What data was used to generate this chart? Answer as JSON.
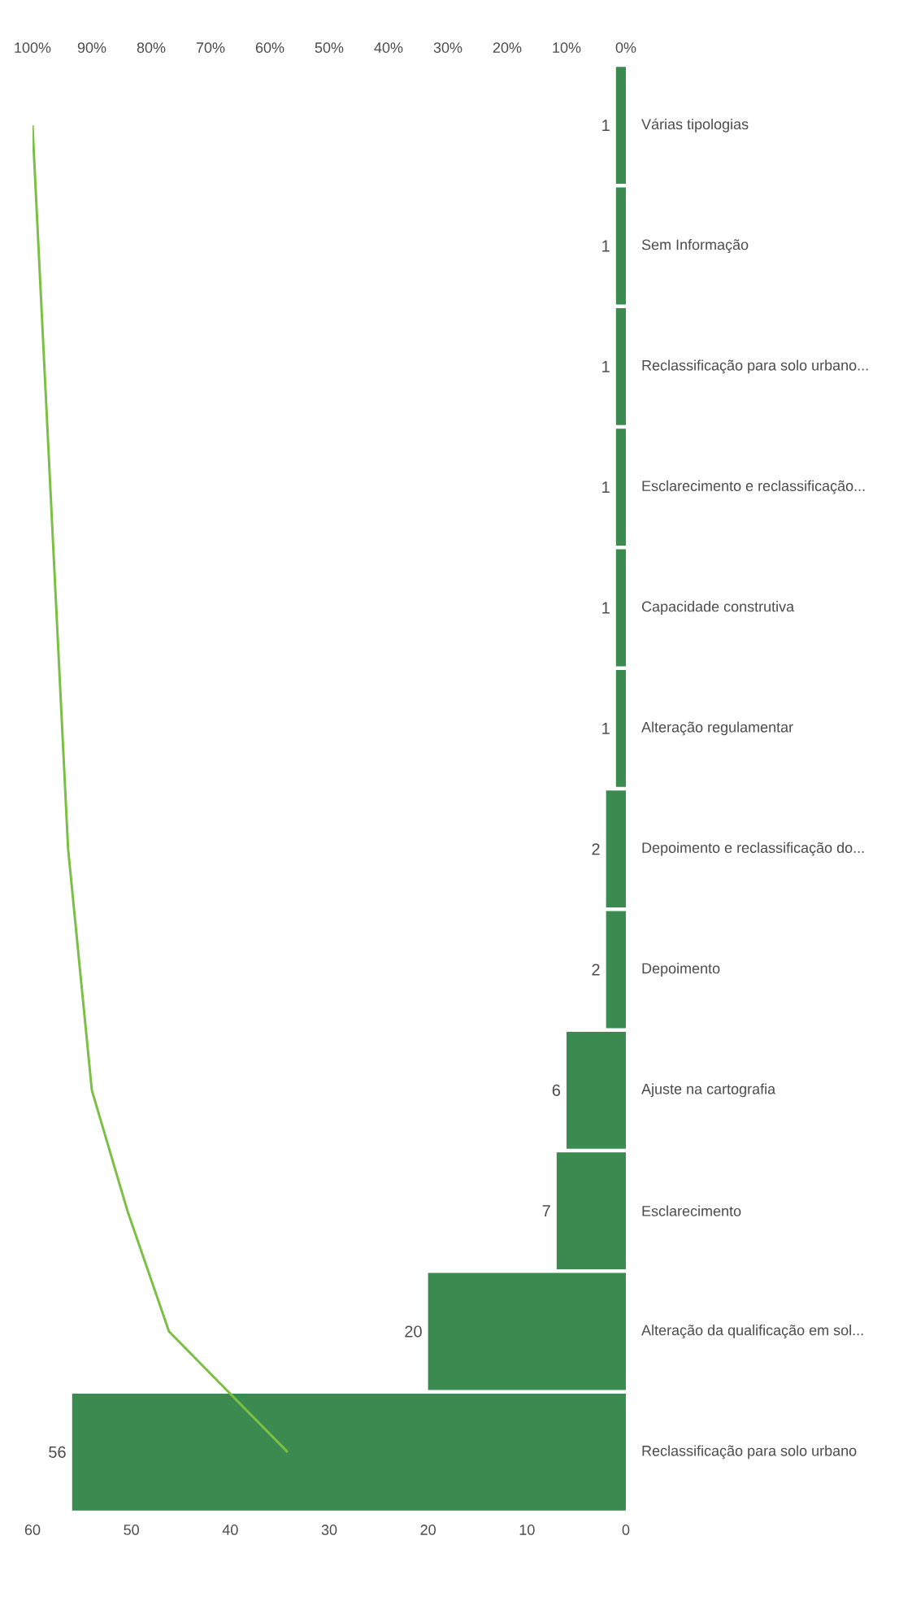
{
  "chart_data": {
    "type": "bar",
    "orientation": "horizontal",
    "categories": [
      "Várias tipologias",
      "Sem Informação",
      "Reclassificação para solo urbano...",
      "Esclarecimento e reclassificação...",
      "Capacidade construtiva",
      "Alteração regulamentar",
      "Depoimento e reclassificação do...",
      "Depoimento",
      "Ajuste na cartografia",
      "Esclarecimento",
      "Alteração da qualificação em sol...",
      "Reclassificação para solo urbano"
    ],
    "series": [
      {
        "color": "#3b8a4f",
        "values": [
          1,
          1,
          1,
          1,
          1,
          1,
          2,
          2,
          6,
          7,
          20,
          56
        ],
        "value_labels": [
          "1",
          "1",
          "1",
          "1",
          "1",
          "1",
          "2",
          "2",
          "6",
          "7",
          "20",
          "56"
        ]
      },
      {
        "type": "line",
        "axis": "x2",
        "color": "#7cbf45",
        "values": [
          100,
          99,
          98,
          97,
          96,
          95,
          94,
          92,
          90,
          84,
          77,
          57
        ]
      }
    ],
    "xlim": [
      60,
      0
    ],
    "xticks": [
      0,
      10,
      20,
      30,
      40,
      50,
      60
    ],
    "x2lim": [
      100,
      0
    ],
    "x2ticks": [
      {
        "value": 0,
        "label": "0%"
      },
      {
        "value": 10,
        "label": "10%"
      },
      {
        "value": 20,
        "label": "20%"
      },
      {
        "value": 30,
        "label": "30%"
      },
      {
        "value": 40,
        "label": "40%"
      },
      {
        "value": 50,
        "label": "50%"
      },
      {
        "value": 60,
        "label": "60%"
      },
      {
        "value": 70,
        "label": "70%"
      },
      {
        "value": 80,
        "label": "80%"
      },
      {
        "value": 90,
        "label": "90%"
      },
      {
        "value": 100,
        "label": "100%"
      }
    ]
  }
}
